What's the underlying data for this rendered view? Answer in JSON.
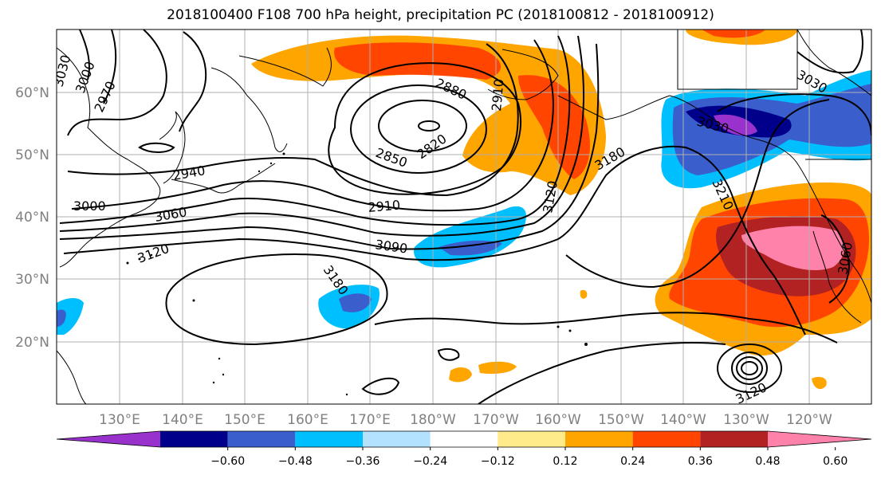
{
  "title": "2018100400 F108 700 hPa height, precipitation PC (2018100812 - 2018100912)",
  "lat_labels": [
    "60°N",
    "50°N",
    "40°N",
    "30°N",
    "20°N"
  ],
  "lon_labels": [
    "130°E",
    "140°E",
    "150°E",
    "160°E",
    "170°E",
    "180°W",
    "170°W",
    "160°W",
    "150°W",
    "140°W",
    "130°W",
    "120°W"
  ],
  "contour_labels": [
    "3030",
    "3000",
    "2970",
    "2940",
    "3000",
    "3060",
    "3120",
    "2880",
    "2850",
    "2820",
    "2910",
    "3090",
    "3180",
    "2910",
    "3120",
    "3180",
    "3210",
    "3030",
    "3030",
    "3060",
    "3120"
  ],
  "colorbar": {
    "colors": [
      "#9932CC",
      "#00008B",
      "#3A5FCD",
      "#00BFFF",
      "#B2E2FF",
      "#FFFFFF",
      "#FFEB8A",
      "#FFA500",
      "#FF4500",
      "#B22222",
      "#FF82AB"
    ],
    "tick_labels": [
      "−0.60",
      "−0.48",
      "−0.36",
      "−0.24",
      "−0.12",
      "0.12",
      "0.24",
      "0.36",
      "0.48",
      "0.60"
    ]
  },
  "map": {
    "projection": "plate carree",
    "lon_range": "120°E to 110°W",
    "lat_range": "10°N to 70°N",
    "contour_interval_m": 30,
    "grid": true
  }
}
